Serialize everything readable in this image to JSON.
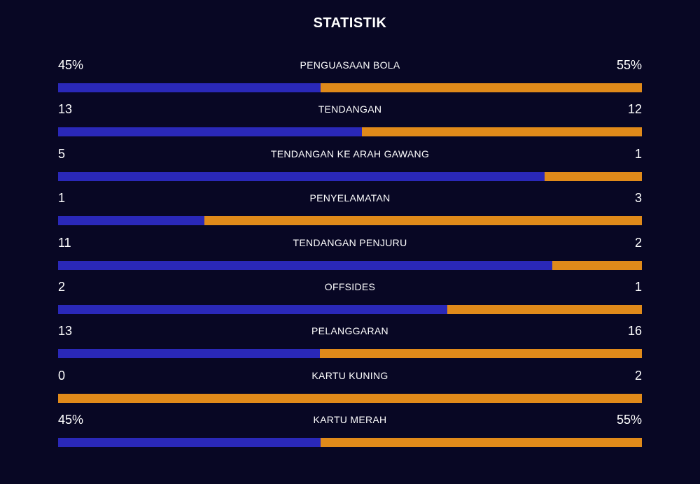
{
  "title": "STATISTIK",
  "colors": {
    "background": "#080724",
    "home": "#2a28b8",
    "away": "#e08a1a"
  },
  "stats": [
    {
      "label": "PENGUASAAN BOLA",
      "home": "45%",
      "away": "55%",
      "home_share": 0.45
    },
    {
      "label": "TENDANGAN",
      "home": "13",
      "away": "12",
      "home_share": 0.52
    },
    {
      "label": "TENDANGAN KE ARAH GAWANG",
      "home": "5",
      "away": "1",
      "home_share": 0.833
    },
    {
      "label": "PENYELAMATAN",
      "home": "1",
      "away": "3",
      "home_share": 0.25
    },
    {
      "label": "TENDANGAN PENJURU",
      "home": "11",
      "away": "2",
      "home_share": 0.846
    },
    {
      "label": "OFFSIDES",
      "home": "2",
      "away": "1",
      "home_share": 0.667
    },
    {
      "label": "PELANGGARAN",
      "home": "13",
      "away": "16",
      "home_share": 0.448
    },
    {
      "label": "KARTU KUNING",
      "home": "0",
      "away": "2",
      "home_share": 0.0
    },
    {
      "label": "KARTU MERAH",
      "home": "45%",
      "away": "55%",
      "home_share": 0.45
    }
  ]
}
